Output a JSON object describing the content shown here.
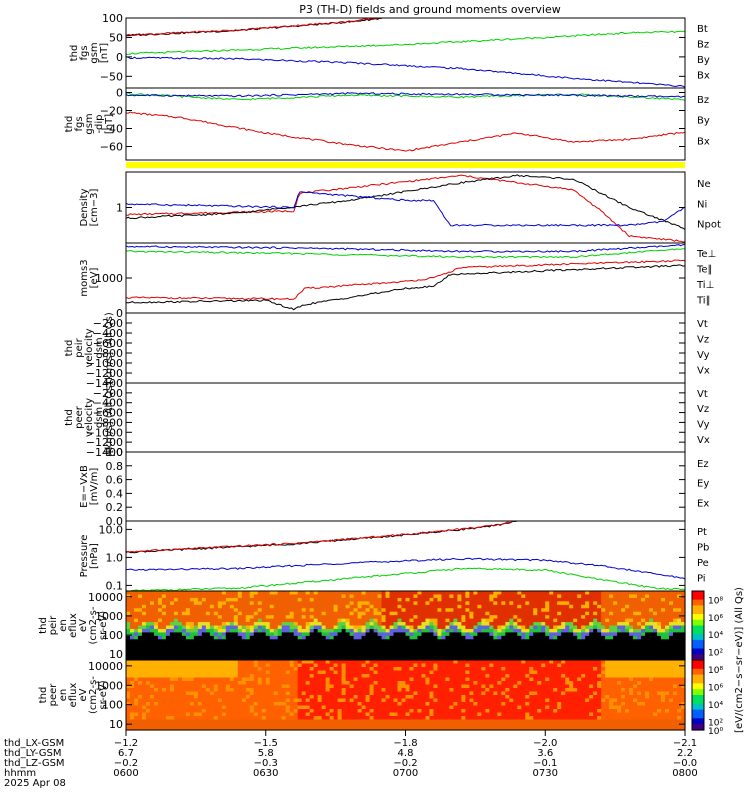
{
  "title": "P3 (TH-D) fields and ground moments overview",
  "colors": {
    "black": "#000000",
    "red": "#e00000",
    "green": "#00d000",
    "blue": "#0000d0",
    "yellow": "#ffff00"
  },
  "chart_data": [
    {
      "type": "line",
      "id": "fgs",
      "ylabel": [
        "thd",
        "fgs",
        "gsm",
        "[nT]"
      ],
      "ylim": [
        -80,
        100
      ],
      "yticks": [
        {
          "label": "100",
          "v": 100
        },
        {
          "label": "50",
          "v": 50
        },
        {
          "label": "0",
          "v": 0
        },
        {
          "label": "−50",
          "v": -50
        }
      ],
      "legend": [
        {
          "name": "Bt",
          "color": "#000000"
        },
        {
          "name": "Bz",
          "color": "#e00000"
        },
        {
          "name": "By",
          "color": "#00d000"
        },
        {
          "name": "Bx",
          "color": "#0000d0"
        }
      ],
      "series": [
        {
          "name": "Bt",
          "color": "#000000",
          "x": [
            0,
            0.2,
            0.4,
            0.46
          ],
          "y": [
            55,
            68,
            90,
            100
          ]
        },
        {
          "name": "Bz",
          "color": "#e00000",
          "x": [
            0,
            0.2,
            0.4,
            0.46
          ],
          "y": [
            56,
            69,
            91,
            101
          ]
        },
        {
          "name": "By",
          "color": "#00d000",
          "x": [
            0,
            0.25,
            0.5,
            0.75,
            0.9,
            1
          ],
          "y": [
            8,
            20,
            32,
            50,
            62,
            65
          ]
        },
        {
          "name": "Bx",
          "color": "#0000d0",
          "x": [
            0,
            0.2,
            0.4,
            0.6,
            0.8,
            1
          ],
          "y": [
            -2,
            -5,
            -15,
            -30,
            -55,
            -76
          ]
        }
      ]
    },
    {
      "type": "line",
      "id": "fgs_dip",
      "ylabel": [
        "thd",
        "fgs",
        "gsm",
        "-dip",
        "[nT]"
      ],
      "ylim": [
        -75,
        5
      ],
      "yticks": [
        {
          "label": "0",
          "v": 0
        },
        {
          "label": "−20",
          "v": -20
        },
        {
          "label": "−40",
          "v": -40
        },
        {
          "label": "−60",
          "v": -60
        }
      ],
      "legend": [
        {
          "name": "Bz",
          "color": "#e00000"
        },
        {
          "name": "By",
          "color": "#00d000"
        },
        {
          "name": "Bx",
          "color": "#0000d0"
        }
      ],
      "series": [
        {
          "name": "Bz",
          "color": "#e00000",
          "x": [
            0,
            0.1,
            0.25,
            0.4,
            0.5,
            0.6,
            0.7,
            0.8,
            0.9,
            1
          ],
          "y": [
            -22,
            -28,
            -45,
            -58,
            -65,
            -55,
            -45,
            -55,
            -52,
            -44
          ]
        },
        {
          "name": "By",
          "color": "#00d000",
          "x": [
            0,
            0.2,
            0.4,
            0.6,
            0.8,
            1
          ],
          "y": [
            -1,
            -8,
            -3,
            -5,
            -2,
            -8
          ]
        },
        {
          "name": "Bx",
          "color": "#0000d0",
          "x": [
            0,
            0.2,
            0.4,
            0.6,
            0.8,
            1
          ],
          "y": [
            -3,
            -4,
            -1,
            -2,
            -3,
            -5
          ]
        }
      ]
    },
    {
      "type": "bar",
      "id": "mode_flag",
      "color": "#ffff00"
    },
    {
      "type": "line",
      "id": "density",
      "ylabel": [
        "Density",
        "[cm−3]"
      ],
      "yscale": "log",
      "yticks": [
        {
          "label": "1",
          "v": 0.5
        }
      ],
      "legend": [
        {
          "name": "Ne",
          "color": "#e00000"
        },
        {
          "name": "Ni",
          "color": "#000000"
        },
        {
          "name": "Npot",
          "color": "#0000d0"
        }
      ],
      "series": [
        {
          "name": "Ne",
          "color": "#e00000",
          "x": [
            0,
            0.3,
            0.31,
            0.6,
            0.7,
            0.8,
            0.85,
            0.9,
            1
          ],
          "y": [
            0.4,
            0.45,
            0.7,
            0.95,
            0.85,
            0.75,
            0.45,
            0.1,
            0.02
          ]
        },
        {
          "name": "Ni",
          "color": "#000000",
          "x": [
            0,
            0.2,
            0.4,
            0.6,
            0.7,
            0.8,
            0.9,
            1
          ],
          "y": [
            0.35,
            0.42,
            0.6,
            0.85,
            0.95,
            0.9,
            0.5,
            0.2
          ]
        },
        {
          "name": "Npot",
          "color": "#0000d0",
          "x": [
            0,
            0.3,
            0.31,
            0.5,
            0.55,
            0.58,
            0.9,
            0.96,
            1
          ],
          "y": [
            0.55,
            0.5,
            0.72,
            0.6,
            0.6,
            0.25,
            0.25,
            0.3,
            0.5
          ]
        }
      ]
    },
    {
      "type": "line",
      "id": "moms_temp",
      "ylabel": [
        "moms3",
        "[eV]"
      ],
      "yscale": "log",
      "yticks": [
        {
          "label": "1000",
          "v": 0.5
        }
      ],
      "legend": [
        {
          "name": "Te⊥",
          "color": "#e00000"
        },
        {
          "name": "Te∥",
          "color": "#000000"
        },
        {
          "name": "Ti⊥",
          "color": "#0000d0"
        },
        {
          "name": "Ti∥",
          "color": "#00d000"
        }
      ],
      "series": [
        {
          "name": "Ti⊥",
          "color": "#0000d0",
          "x": [
            0,
            0.3,
            0.6,
            0.8,
            1
          ],
          "y": [
            0.95,
            0.93,
            0.88,
            0.88,
            0.97
          ]
        },
        {
          "name": "Ti∥",
          "color": "#00d000",
          "x": [
            0,
            0.3,
            0.6,
            0.8,
            1
          ],
          "y": [
            0.88,
            0.85,
            0.8,
            0.8,
            0.92
          ]
        },
        {
          "name": "Te⊥",
          "color": "#e00000",
          "x": [
            0,
            0.3,
            0.32,
            0.5,
            0.55,
            0.6,
            0.8,
            1
          ],
          "y": [
            0.22,
            0.2,
            0.35,
            0.45,
            0.5,
            0.65,
            0.7,
            0.75
          ]
        },
        {
          "name": "Te∥",
          "color": "#000000",
          "x": [
            0,
            0.25,
            0.3,
            0.32,
            0.5,
            0.55,
            0.58,
            0.8,
            1
          ],
          "y": [
            0.15,
            0.18,
            0.05,
            0.12,
            0.35,
            0.38,
            0.55,
            0.62,
            0.68
          ]
        }
      ]
    },
    {
      "type": "line",
      "id": "peir_vel",
      "ylabel": [
        "thd",
        "peir",
        "velocity",
        "gsm",
        "[km/s] (All Qs)"
      ],
      "ylim": [
        -1400,
        0
      ],
      "yticks": [
        {
          "label": "0",
          "v": 0
        },
        {
          "label": "−200",
          "v": -200
        },
        {
          "label": "−400",
          "v": -400
        },
        {
          "label": "−600",
          "v": -600
        },
        {
          "label": "−800",
          "v": -800
        },
        {
          "label": "−1000",
          "v": -1000
        },
        {
          "label": "−1200",
          "v": -1200
        },
        {
          "label": "−1400",
          "v": -1400
        }
      ],
      "legend": [
        {
          "name": "Vt",
          "color": "#000000"
        },
        {
          "name": "Vz",
          "color": "#e00000"
        },
        {
          "name": "Vy",
          "color": "#00d000"
        },
        {
          "name": "Vx",
          "color": "#0000d0"
        }
      ],
      "series": []
    },
    {
      "type": "line",
      "id": "peer_vel",
      "ylabel": [
        "thd",
        "peer",
        "velocity",
        "gsm",
        "[km/s] (All Qs)"
      ],
      "ylim": [
        -1400,
        0
      ],
      "yticks": [
        {
          "label": "−200",
          "v": -200
        },
        {
          "label": "−400",
          "v": -400
        },
        {
          "label": "−600",
          "v": -600
        },
        {
          "label": "−800",
          "v": -800
        },
        {
          "label": "−1000",
          "v": -1000
        },
        {
          "label": "−1200",
          "v": -1200
        },
        {
          "label": "−1400",
          "v": -1400
        }
      ],
      "legend": [
        {
          "name": "Vt",
          "color": "#000000"
        },
        {
          "name": "Vz",
          "color": "#e00000"
        },
        {
          "name": "Vy",
          "color": "#00d000"
        },
        {
          "name": "Vx",
          "color": "#0000d0"
        }
      ],
      "series": []
    },
    {
      "type": "line",
      "id": "efield",
      "ylabel": [
        "E=−VxB",
        "[mV/m]"
      ],
      "ylim": [
        0,
        1
      ],
      "yticks": [
        {
          "label": "1.0",
          "v": 1
        },
        {
          "label": "0.8",
          "v": 0.8
        },
        {
          "label": "0.6",
          "v": 0.6
        },
        {
          "label": "0.4",
          "v": 0.4
        },
        {
          "label": "0.2",
          "v": 0.2
        },
        {
          "label": "0.0",
          "v": 0
        }
      ],
      "legend": [
        {
          "name": "Ez",
          "color": "#e00000"
        },
        {
          "name": "Ey",
          "color": "#00d000"
        },
        {
          "name": "Ex",
          "color": "#0000d0"
        }
      ],
      "series": []
    },
    {
      "type": "line",
      "id": "pressure",
      "ylabel": [
        "Pressure",
        "[nPa]"
      ],
      "yscale": "log",
      "ylim": [
        -1.2,
        1.3
      ],
      "yticks": [
        {
          "label": "10.0",
          "v": 1
        },
        {
          "label": "1.0",
          "v": 0
        },
        {
          "label": "0.1",
          "v": -1
        }
      ],
      "legend": [
        {
          "name": "Pt",
          "color": "#000000"
        },
        {
          "name": "Pb",
          "color": "#e00000"
        },
        {
          "name": "Pe",
          "color": "#00d000"
        },
        {
          "name": "Pi",
          "color": "#0000d0"
        }
      ],
      "series": [
        {
          "name": "Pt",
          "color": "#000000",
          "x": [
            0,
            0.3,
            0.5,
            0.65,
            0.7
          ],
          "y": [
            0.18,
            0.48,
            0.8,
            1.1,
            1.3
          ]
        },
        {
          "name": "Pb",
          "color": "#e00000",
          "x": [
            0,
            0.3,
            0.5,
            0.65,
            0.7
          ],
          "y": [
            0.2,
            0.5,
            0.82,
            1.12,
            1.32
          ]
        },
        {
          "name": "Pi",
          "color": "#0000d0",
          "x": [
            0,
            0.2,
            0.4,
            0.6,
            0.75,
            0.85,
            0.95,
            1
          ],
          "y": [
            -0.45,
            -0.4,
            -0.2,
            -0.05,
            -0.1,
            -0.3,
            -0.6,
            -0.75
          ]
        },
        {
          "name": "Pe",
          "color": "#00d000",
          "x": [
            0,
            0.2,
            0.4,
            0.6,
            0.75,
            0.85,
            0.95,
            1
          ],
          "y": [
            -1.2,
            -1.1,
            -0.75,
            -0.4,
            -0.45,
            -0.8,
            -1.1,
            -1.15
          ]
        }
      ]
    },
    {
      "type": "heatmap",
      "id": "peir_eflux",
      "ylabel": [
        "thd",
        "peir",
        "en",
        "eflux",
        "eV",
        "(cm2-s-",
        "sr-eV)"
      ],
      "yscale": "log",
      "ylim": [
        5,
        20000
      ],
      "yticks": [
        {
          "label": "10000",
          "v": 10000
        },
        {
          "label": "1000",
          "v": 1000
        },
        {
          "label": "100",
          "v": 100
        },
        {
          "label": "10",
          "v": 10
        }
      ]
    },
    {
      "type": "heatmap",
      "id": "peer_eflux",
      "ylabel": [
        "thd",
        "peer",
        "en",
        "eflux",
        "eV",
        "(cm2-s-",
        "sr-eV)"
      ],
      "yscale": "log",
      "ylim": [
        5,
        20000
      ],
      "yticks": [
        {
          "label": "10000",
          "v": 10000
        },
        {
          "label": "1000",
          "v": 1000
        },
        {
          "label": "100",
          "v": 100
        },
        {
          "label": "10",
          "v": 10
        }
      ]
    }
  ],
  "colorbar": {
    "label": "[eV/(cm2−s−sr−eV)] (All Qs)",
    "ticks_top": [
      {
        "label": "10⁸",
        "v": 0.875
      },
      {
        "label": "10⁶",
        "v": 0.625
      },
      {
        "label": "10⁴",
        "v": 0.375
      },
      {
        "label": "10²",
        "v": 0.125
      }
    ],
    "ticks_bottom": [
      {
        "label": "10⁸",
        "v": 0.875
      },
      {
        "label": "10⁶",
        "v": 0.625
      },
      {
        "label": "10⁴",
        "v": 0.375
      },
      {
        "label": "10²",
        "v": 0.125
      },
      {
        "label": "10⁰",
        "v": 0
      }
    ]
  },
  "xaxis": {
    "row_labels": [
      "thd_LX-GSM",
      "thd_LY-GSM",
      "thd_LZ-GSM",
      "hhmm",
      "2025 Apr 08"
    ],
    "ticks": [
      {
        "values": [
          "−1.2",
          "6.7",
          "−0.2",
          "0600"
        ]
      },
      {
        "values": [
          "−1.5",
          "5.8",
          "−0.3",
          "0630"
        ]
      },
      {
        "values": [
          "−1.8",
          "4.8",
          "−0.2",
          "0700"
        ]
      },
      {
        "values": [
          "−2.0",
          "3.6",
          "−0.1",
          "0730"
        ]
      },
      {
        "values": [
          "−2.1",
          "2.2",
          "−0.0",
          "0800"
        ]
      }
    ]
  }
}
